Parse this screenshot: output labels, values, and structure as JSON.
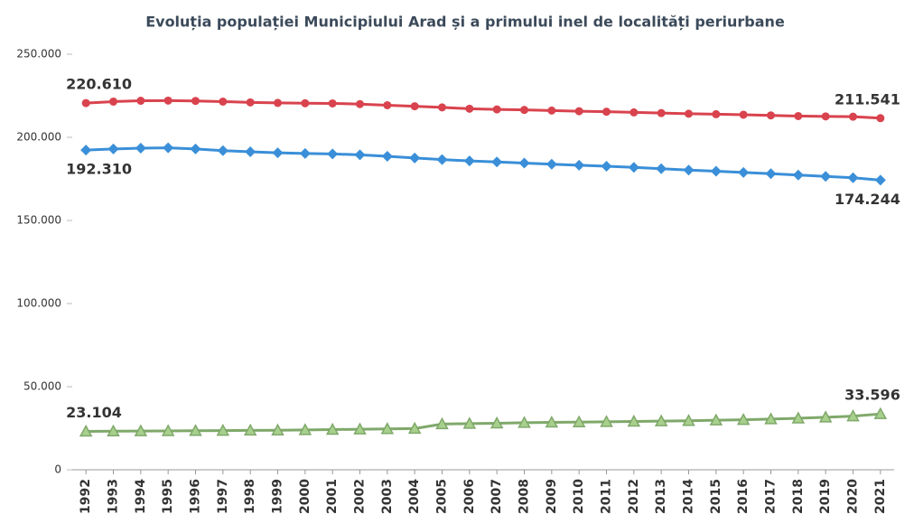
{
  "chart_data": {
    "type": "line",
    "title": "Evoluția populației Municipiului Arad și a primului inel de localități periurbane",
    "categories": [
      "1992",
      "1993",
      "1994",
      "1995",
      "1996",
      "1997",
      "1998",
      "1999",
      "2000",
      "2001",
      "2002",
      "2003",
      "2004",
      "2005",
      "2006",
      "2007",
      "2008",
      "2009",
      "2010",
      "2011",
      "2012",
      "2013",
      "2014",
      "2015",
      "2016",
      "2017",
      "2018",
      "2019",
      "2020",
      "2021"
    ],
    "ylim": [
      0,
      250000
    ],
    "yticks": [
      0,
      {
        "value": 50000,
        "label": "50.000"
      },
      {
        "value": 100000,
        "label": "100.000"
      },
      {
        "value": 150000,
        "label": "150.000"
      },
      {
        "value": 200000,
        "label": "200.000"
      },
      {
        "value": 250000,
        "label": "250.000"
      }
    ],
    "grid": false,
    "series": [
      {
        "color": "#d9434e",
        "marker": "circle",
        "values": [
          220610,
          221500,
          222000,
          222100,
          221900,
          221500,
          221000,
          220700,
          220500,
          220400,
          220000,
          219300,
          218700,
          218000,
          217200,
          216800,
          216500,
          216100,
          215700,
          215400,
          215000,
          214600,
          214200,
          213900,
          213600,
          213200,
          212800,
          212600,
          212400,
          211541
        ],
        "value_labels": [
          "220.610",
          null,
          null,
          null,
          null,
          null,
          null,
          null,
          null,
          null,
          null,
          null,
          null,
          null,
          null,
          null,
          null,
          null,
          null,
          null,
          null,
          null,
          null,
          null,
          null,
          null,
          null,
          null,
          null,
          "211.541"
        ]
      },
      {
        "color": "#3a8fd8",
        "marker": "diamond",
        "values": [
          192310,
          193000,
          193500,
          193700,
          193000,
          192000,
          191300,
          190700,
          190300,
          190000,
          189500,
          188600,
          187600,
          186600,
          185800,
          185200,
          184500,
          183800,
          183200,
          182600,
          181900,
          181100,
          180300,
          179600,
          178900,
          178100,
          177300,
          176500,
          175700,
          174244
        ],
        "value_labels": [
          "192.310",
          null,
          null,
          null,
          null,
          null,
          null,
          null,
          null,
          null,
          null,
          null,
          null,
          null,
          null,
          null,
          null,
          null,
          null,
          null,
          null,
          null,
          null,
          null,
          null,
          null,
          null,
          null,
          null,
          "174.244"
        ]
      },
      {
        "color": "#7fa86a",
        "marker": "triangle",
        "values": [
          23104,
          23200,
          23300,
          23400,
          23500,
          23600,
          23700,
          23800,
          24000,
          24200,
          24400,
          24600,
          24800,
          27500,
          27800,
          28000,
          28300,
          28500,
          28700,
          28900,
          29100,
          29300,
          29500,
          29800,
          30100,
          30500,
          31000,
          31600,
          32300,
          33596
        ],
        "value_labels": [
          "23.104",
          null,
          null,
          null,
          null,
          null,
          null,
          null,
          null,
          null,
          null,
          null,
          null,
          null,
          null,
          null,
          null,
          null,
          null,
          null,
          null,
          null,
          null,
          null,
          null,
          null,
          null,
          null,
          null,
          "33.596"
        ]
      }
    ]
  }
}
